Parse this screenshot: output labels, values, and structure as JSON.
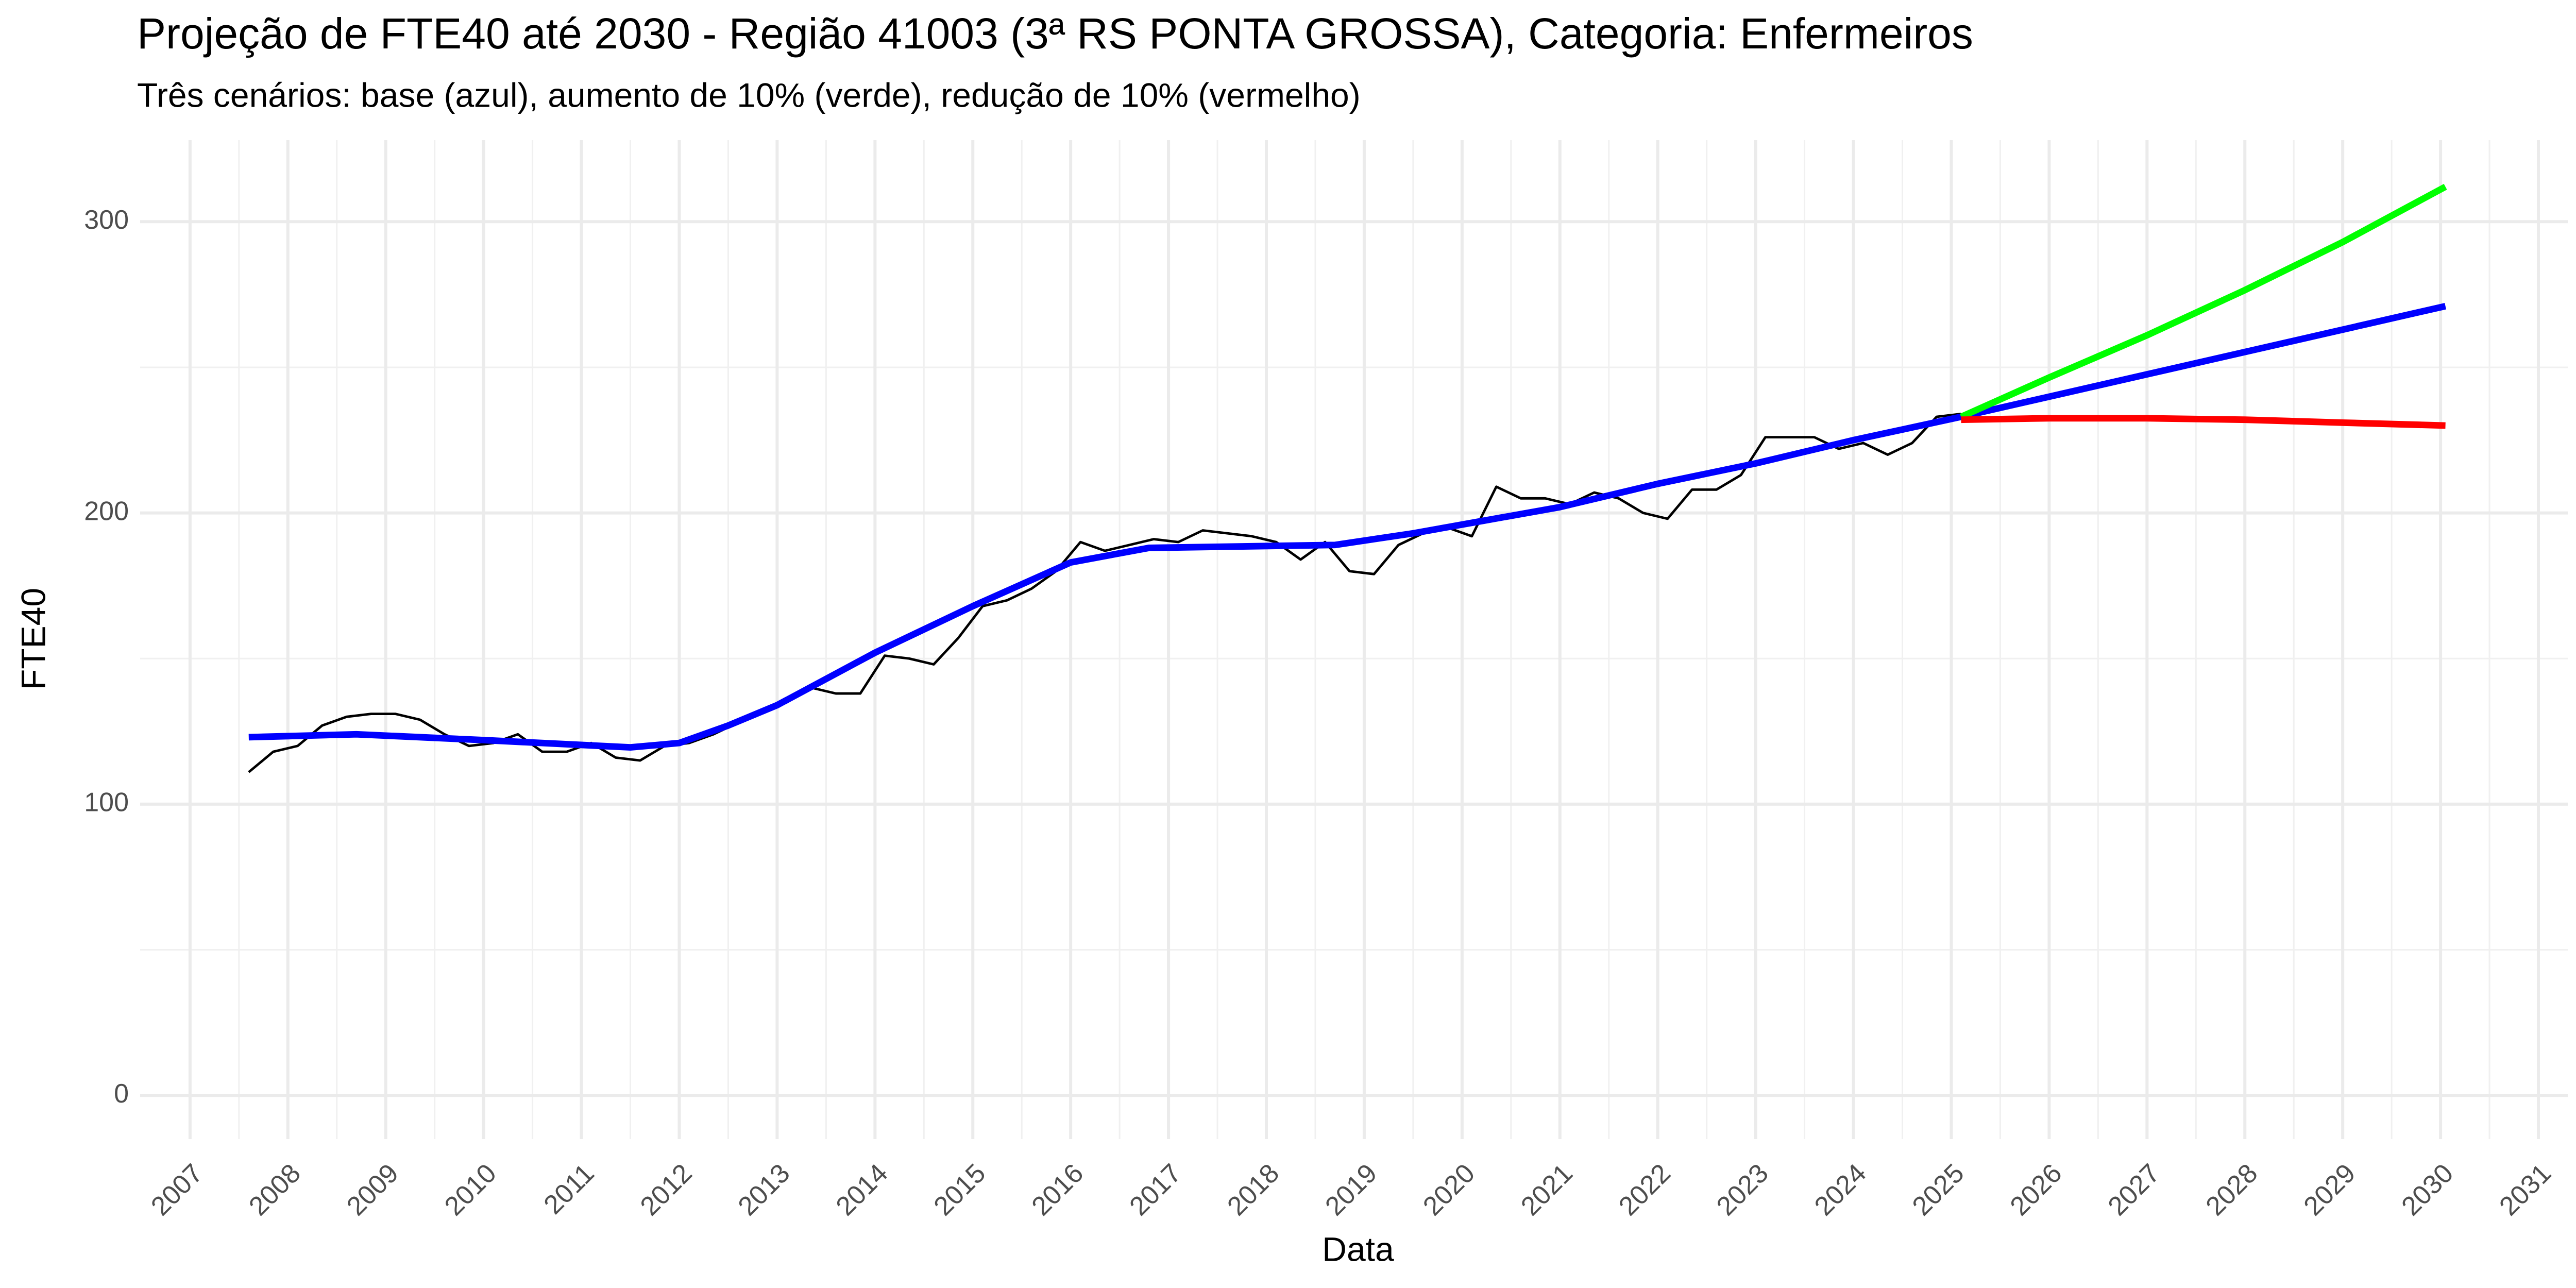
{
  "chart_data": {
    "type": "line",
    "title": "Projeção de FTE40 até 2030 - Região 41003 (3ª RS PONTA GROSSA), Categoria: Enfermeiros",
    "subtitle": "Três cenários: base (azul), aumento de 10% (verde), redução de 10% (vermelho)",
    "x_label": "Data",
    "y_label": "FTE40",
    "xlim": [
      2006.49,
      2031.3
    ],
    "ylim": [
      -15,
      328
    ],
    "xticks": [
      2007,
      2008,
      2009,
      2010,
      2011,
      2012,
      2013,
      2014,
      2015,
      2016,
      2017,
      2018,
      2019,
      2020,
      2021,
      2022,
      2023,
      2024,
      2025,
      2026,
      2027,
      2028,
      2029,
      2030,
      2031
    ],
    "yticks": [
      0,
      100,
      200,
      300
    ],
    "grid": true,
    "minor_grid": true,
    "series": [
      {
        "color": "#000000",
        "width": 1.5,
        "x": [
          2007.6,
          2007.85,
          2008.1,
          2008.35,
          2008.6,
          2008.85,
          2009.1,
          2009.35,
          2009.6,
          2009.85,
          2010.1,
          2010.35,
          2010.6,
          2010.85,
          2011.1,
          2011.35,
          2011.6,
          2011.85,
          2012.1,
          2012.35,
          2012.6,
          2012.85,
          2013.1,
          2013.35,
          2013.6,
          2013.85,
          2014.1,
          2014.35,
          2014.6,
          2014.85,
          2015.1,
          2015.35,
          2015.6,
          2015.85,
          2016.1,
          2016.35,
          2016.6,
          2016.85,
          2017.1,
          2017.35,
          2017.6,
          2017.85,
          2018.1,
          2018.35,
          2018.6,
          2018.85,
          2019.1,
          2019.35,
          2019.6,
          2019.85,
          2020.1,
          2020.35,
          2020.6,
          2020.85,
          2021.1,
          2021.35,
          2021.6,
          2021.85,
          2022.1,
          2022.35,
          2022.6,
          2022.85,
          2023.1,
          2023.35,
          2023.6,
          2023.85,
          2024.1,
          2024.35,
          2024.6,
          2024.85,
          2025.1
        ],
        "values": [
          111,
          118,
          120,
          127,
          130,
          131,
          131,
          129,
          124,
          120,
          121,
          124,
          118,
          118,
          121,
          116,
          115,
          120,
          121,
          124,
          128,
          132,
          135,
          140,
          138,
          138,
          151,
          150,
          148,
          157,
          168,
          170,
          174,
          180,
          190,
          187,
          189,
          191,
          190,
          194,
          193,
          192,
          190,
          184,
          190,
          180,
          179,
          189,
          193,
          195,
          192,
          209,
          205,
          205,
          203,
          207,
          205,
          200,
          198,
          208,
          208,
          213,
          226,
          226,
          226,
          222,
          224,
          220,
          224,
          233,
          234
        ]
      },
      {
        "color": "#0000ff",
        "width": 4,
        "x": [
          2007.6,
          2008.7,
          2010,
          2011.5,
          2012,
          2012.5,
          2013,
          2014,
          2015,
          2016,
          2016.8,
          2018.7,
          2019.5,
          2020,
          2021,
          2022,
          2023,
          2024,
          2025.1,
          2030.05
        ],
        "values": [
          123,
          124,
          122,
          119.5,
          121,
          127,
          134,
          152,
          168,
          183,
          188,
          189,
          193,
          196,
          202,
          210,
          217,
          225,
          233,
          271
        ]
      },
      {
        "color": "#00ff00",
        "width": 4,
        "x": [
          2025.1,
          2026,
          2027,
          2028,
          2029,
          2030.05
        ],
        "values": [
          233,
          246.5,
          261,
          276.5,
          293,
          312
        ]
      },
      {
        "color": "#ff0000",
        "width": 4,
        "x": [
          2025.1,
          2026,
          2027,
          2028,
          2029,
          2030.05
        ],
        "values": [
          232,
          232.5,
          232.5,
          232,
          231,
          230
        ]
      }
    ]
  }
}
